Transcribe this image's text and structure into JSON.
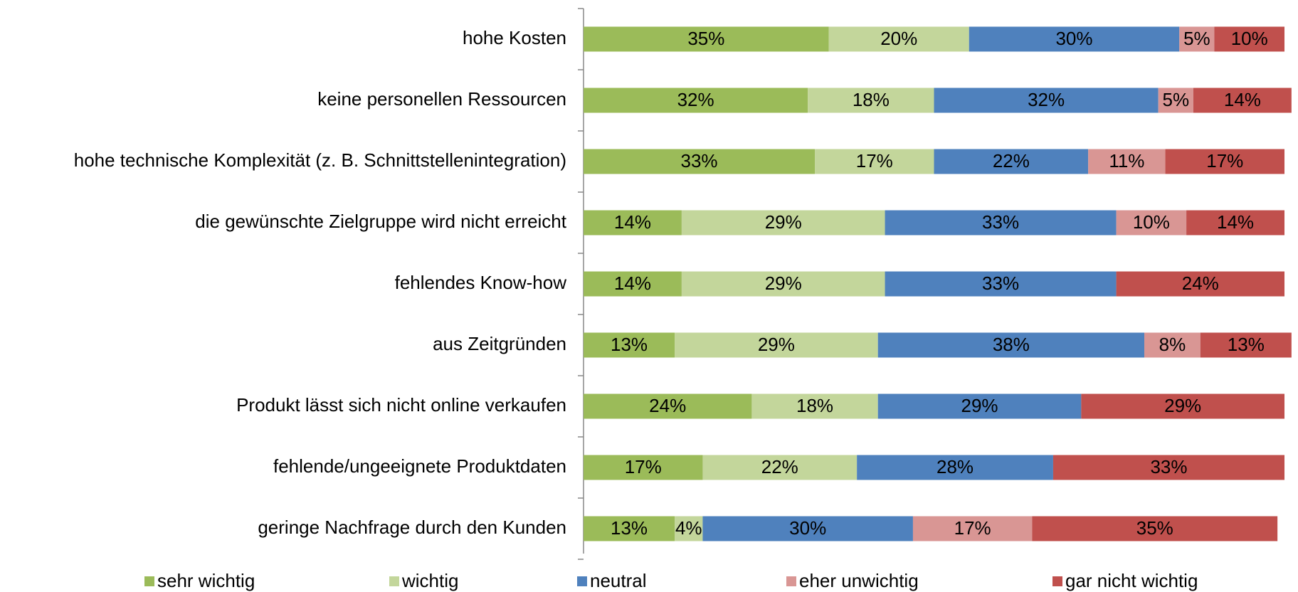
{
  "chart_data": {
    "type": "stacked_bar_horizontal",
    "categories": [
      "hohe Kosten",
      "keine personellen Ressourcen",
      "hohe technische Komplexität (z. B. Schnittstellenintegration)",
      "die gewünschte Zielgruppe wird nicht erreicht",
      "fehlendes Know-how",
      "aus Zeitgründen",
      "Produkt lässt sich nicht online verkaufen",
      "fehlende/ungeeignete Produktdaten",
      "geringe Nachfrage durch den Kunden"
    ],
    "xlim": [
      0,
      100
    ],
    "legend": "bottom",
    "series": [
      {
        "name": "sehr wichtig",
        "color": "#9bbb59",
        "values": [
          35,
          32,
          33,
          14,
          14,
          13,
          24,
          17,
          13
        ],
        "value_labels": [
          "35%",
          "32%",
          "33%",
          "14%",
          "14%",
          "13%",
          "24%",
          "17%",
          "13%"
        ]
      },
      {
        "name": "wichtig",
        "color": "#c3d69b",
        "values": [
          20,
          18,
          17,
          29,
          29,
          29,
          18,
          22,
          4
        ],
        "value_labels": [
          "20%",
          "18%",
          "17%",
          "29%",
          "29%",
          "29%",
          "18%",
          "22%",
          "4%"
        ]
      },
      {
        "name": "neutral",
        "color": "#4f81bd",
        "values": [
          30,
          32,
          22,
          33,
          33,
          38,
          29,
          28,
          30
        ],
        "value_labels": [
          "30%",
          "32%",
          "22%",
          "33%",
          "33%",
          "38%",
          "29%",
          "28%",
          "30%"
        ]
      },
      {
        "name": "eher unwichtig",
        "color": "#d99694",
        "values": [
          5,
          5,
          11,
          10,
          0,
          8,
          0,
          0,
          17
        ],
        "value_labels": [
          "5%",
          "5%",
          "11%",
          "10%",
          null,
          "8%",
          null,
          null,
          "17%"
        ]
      },
      {
        "name": "gar nicht wichtig",
        "color": "#c0504d",
        "values": [
          10,
          14,
          17,
          14,
          24,
          13,
          29,
          33,
          35
        ],
        "value_labels": [
          "10%",
          "14%",
          "17%",
          "14%",
          "24%",
          "13%",
          "29%",
          "33%",
          "35%"
        ]
      }
    ]
  }
}
